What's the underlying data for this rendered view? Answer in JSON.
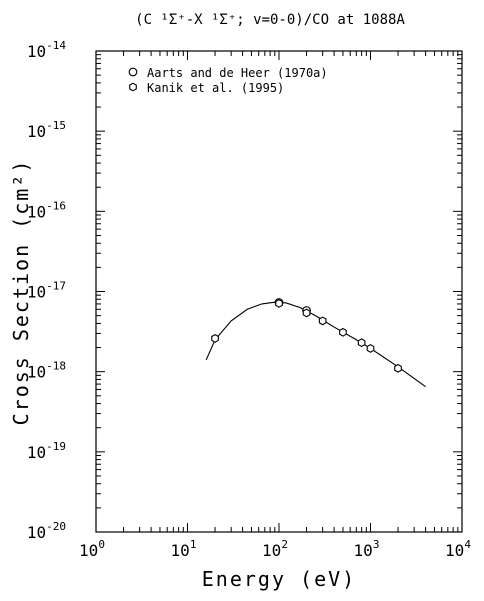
{
  "chart_data": {
    "type": "scatter",
    "title": "(C ¹Σ⁺-X ¹Σ⁺; v=0-0)/CO at 1088A",
    "xlabel": "Energy (eV)",
    "ylabel": "Cross Section (cm²)",
    "xscale": "log",
    "yscale": "log",
    "xlim": [
      1,
      10000
    ],
    "ylim": [
      1e-20,
      1e-14
    ],
    "x_ticks": [
      {
        "value": 1,
        "base": "10",
        "exp": "0"
      },
      {
        "value": 10,
        "base": "10",
        "exp": "1"
      },
      {
        "value": 100,
        "base": "10",
        "exp": "2"
      },
      {
        "value": 1000,
        "base": "10",
        "exp": "3"
      },
      {
        "value": 10000,
        "base": "10",
        "exp": "4"
      }
    ],
    "y_ticks": [
      {
        "value": 1e-20,
        "base": "10",
        "exp": "-20"
      },
      {
        "value": 1e-19,
        "base": "10",
        "exp": "-19"
      },
      {
        "value": 1e-18,
        "base": "10",
        "exp": "-18"
      },
      {
        "value": 1e-17,
        "base": "10",
        "exp": "-17"
      },
      {
        "value": 1e-16,
        "base": "10",
        "exp": "-16"
      },
      {
        "value": 1e-15,
        "base": "10",
        "exp": "-15"
      },
      {
        "value": 1e-14,
        "base": "10",
        "exp": "-14"
      }
    ],
    "grid": false,
    "legend_position": "top-left",
    "series": [
      {
        "name": "Aarts and de Heer (1970a)",
        "marker": "circle",
        "points": [
          {
            "x": 100,
            "y": 7.3e-18
          },
          {
            "x": 200,
            "y": 5.8e-18
          }
        ]
      },
      {
        "name": "Kanik et al. (1995)",
        "marker": "hexagon",
        "points": [
          {
            "x": 20,
            "y": 2.6e-18
          },
          {
            "x": 100,
            "y": 7.1e-18
          },
          {
            "x": 200,
            "y": 5.4e-18
          },
          {
            "x": 300,
            "y": 4.3e-18
          },
          {
            "x": 500,
            "y": 3.1e-18
          },
          {
            "x": 800,
            "y": 2.3e-18
          },
          {
            "x": 1000,
            "y": 1.95e-18
          },
          {
            "x": 2000,
            "y": 1.1e-18
          }
        ]
      }
    ],
    "fit_curve": {
      "points": [
        {
          "x": 16,
          "y": 1.4e-18
        },
        {
          "x": 20,
          "y": 2.5e-18
        },
        {
          "x": 30,
          "y": 4.3e-18
        },
        {
          "x": 45,
          "y": 6e-18
        },
        {
          "x": 65,
          "y": 7e-18
        },
        {
          "x": 90,
          "y": 7.35e-18
        },
        {
          "x": 120,
          "y": 7.2e-18
        },
        {
          "x": 170,
          "y": 6.3e-18
        },
        {
          "x": 250,
          "y": 5e-18
        },
        {
          "x": 400,
          "y": 3.6e-18
        },
        {
          "x": 700,
          "y": 2.5e-18
        },
        {
          "x": 1000,
          "y": 1.95e-18
        },
        {
          "x": 2000,
          "y": 1.15e-18
        },
        {
          "x": 4000,
          "y": 6.5e-19
        }
      ]
    }
  }
}
